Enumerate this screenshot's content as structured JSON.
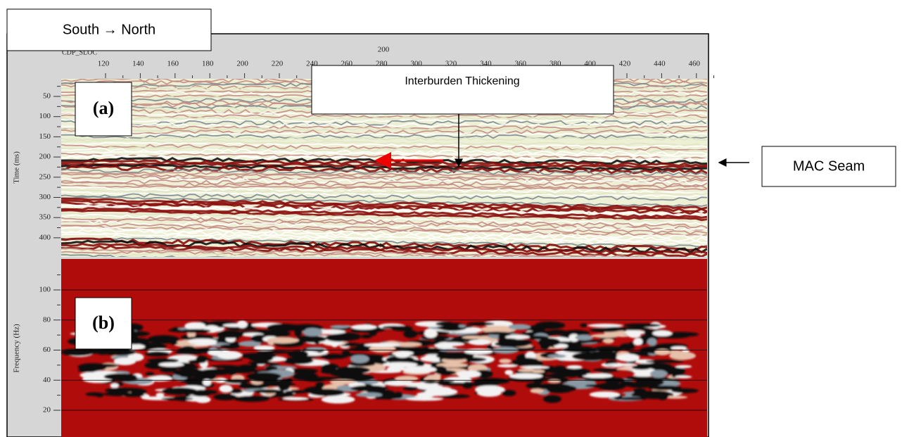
{
  "title_box": "South → North",
  "axis": {
    "x_label": "CDP_SLOC",
    "x_top_label": "200",
    "x_ticks": [
      120,
      140,
      160,
      180,
      200,
      220,
      240,
      260,
      280,
      300,
      320,
      340,
      360,
      380,
      400,
      420,
      440,
      460
    ]
  },
  "panel_a": {
    "label": "(a)",
    "y_label": "Time (ms)",
    "y_ticks": [
      50,
      100,
      150,
      200,
      250,
      300,
      350,
      400
    ]
  },
  "panel_b": {
    "label": "(b)",
    "y_label": "Frequency (Hz)",
    "y_ticks": [
      20,
      40,
      60,
      80,
      100
    ]
  },
  "annotations": {
    "interburden": "Interburden Thickening",
    "mac_seam": "MAC Seam"
  }
}
